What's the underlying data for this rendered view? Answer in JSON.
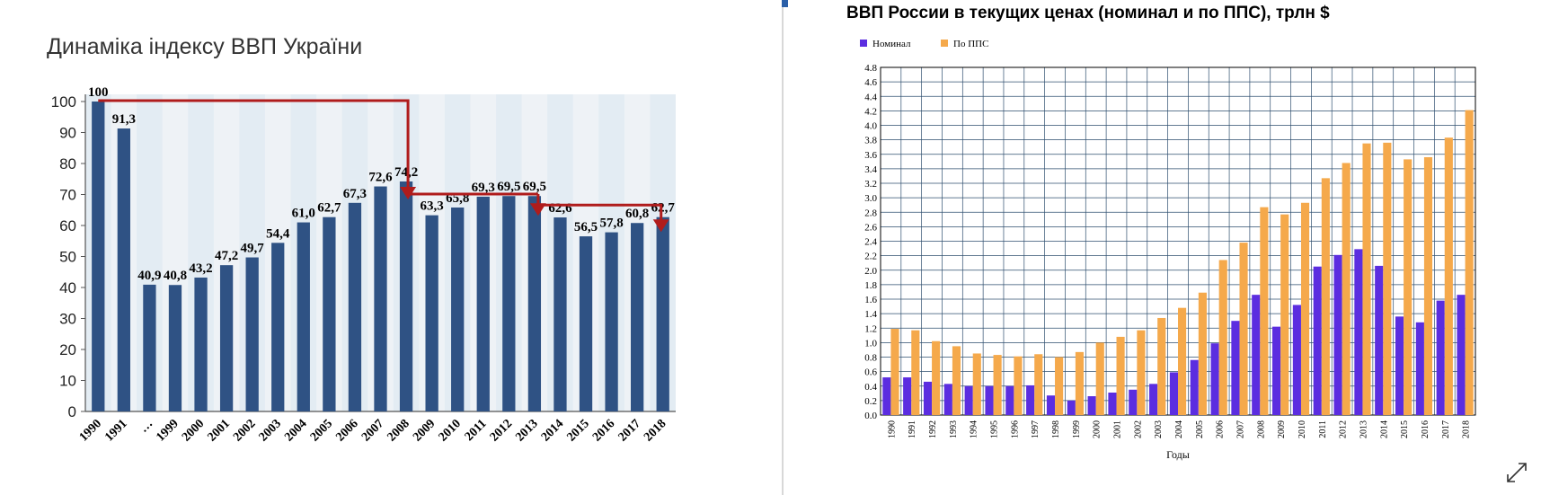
{
  "left_title": "Динаміка індексу ВВП України",
  "right_title": "ВВП России в текущих ценах (номинал и по ППС), трлн $",
  "icons": {
    "expand": "expand-diagonal-icon"
  },
  "chart_data": [
    {
      "type": "bar",
      "title": "Динаміка індексу ВВП України",
      "categories": [
        "1990",
        "1991",
        "…",
        "1999",
        "2000",
        "2001",
        "2002",
        "2003",
        "2004",
        "2005",
        "2006",
        "2007",
        "2008",
        "2009",
        "2010",
        "2011",
        "2012",
        "2013",
        "2014",
        "2015",
        "2016",
        "2017",
        "2018"
      ],
      "values": [
        100,
        91.3,
        40.9,
        40.8,
        43.2,
        47.2,
        49.7,
        54.4,
        61.0,
        62.7,
        67.3,
        72.6,
        74.2,
        63.3,
        65.8,
        69.3,
        69.5,
        69.5,
        62.6,
        56.5,
        57.8,
        60.8,
        62.7
      ],
      "labels": [
        "100",
        "91,3",
        "40,9",
        "40,8",
        "43,2",
        "47,2",
        "49,7",
        "54,4",
        "61,0",
        "62,7",
        "67,3",
        "72,6",
        "74,2",
        "63,3",
        "65,8",
        "69,3",
        "69,5",
        "69,5",
        "62,6",
        "56,5",
        "57,8",
        "60,8",
        "62,7"
      ],
      "yticks": [
        "0",
        "10",
        "20",
        "30",
        "40",
        "50",
        "60",
        "70",
        "80",
        "90",
        "100"
      ],
      "ylim": [
        0,
        100
      ],
      "bar_color": "#2f5284",
      "arrow_color": "#b01c1c",
      "annotations": "red step arrows: 1990 → 2008, 2008 → 2013, 2013 → 2018"
    },
    {
      "type": "bar",
      "title": "ВВП России в текущих ценах (номинал и по ППС), трлн $",
      "xlabel": "Годы",
      "categories": [
        "1990",
        "1991",
        "1992",
        "1993",
        "1994",
        "1995",
        "1996",
        "1997",
        "1998",
        "1999",
        "2000",
        "2001",
        "2002",
        "2003",
        "2004",
        "2005",
        "2006",
        "2007",
        "2008",
        "2009",
        "2010",
        "2011",
        "2012",
        "2013",
        "2014",
        "2015",
        "2016",
        "2017",
        "2018"
      ],
      "series": [
        {
          "name": "Номинал",
          "color": "#5b2de0",
          "values": [
            0.52,
            0.52,
            0.46,
            0.43,
            0.4,
            0.4,
            0.4,
            0.41,
            0.27,
            0.2,
            0.26,
            0.31,
            0.35,
            0.43,
            0.59,
            0.76,
            0.99,
            1.3,
            1.66,
            1.22,
            1.52,
            2.05,
            2.21,
            2.29,
            2.06,
            1.36,
            1.28,
            1.58,
            1.66
          ]
        },
        {
          "name": "По ППС",
          "color": "#f5a94b",
          "values": [
            1.19,
            1.17,
            1.02,
            0.95,
            0.85,
            0.83,
            0.81,
            0.84,
            0.8,
            0.87,
            1.0,
            1.08,
            1.17,
            1.34,
            1.48,
            1.69,
            2.14,
            2.38,
            2.87,
            2.77,
            2.93,
            3.27,
            3.48,
            3.75,
            3.76,
            3.53,
            3.56,
            3.83,
            4.21
          ]
        }
      ],
      "yticks": [
        "0.0",
        "0.2",
        "0.4",
        "0.6",
        "0.8",
        "1.0",
        "1.2",
        "1.4",
        "1.6",
        "1.8",
        "2.0",
        "2.2",
        "2.4",
        "2.6",
        "2.8",
        "3.0",
        "3.2",
        "3.4",
        "3.6",
        "3.8",
        "4.0",
        "4.2",
        "4.4",
        "4.6",
        "4.8"
      ],
      "ylim": [
        0,
        4.8
      ],
      "grid": true,
      "legend_position": "top-left"
    }
  ]
}
